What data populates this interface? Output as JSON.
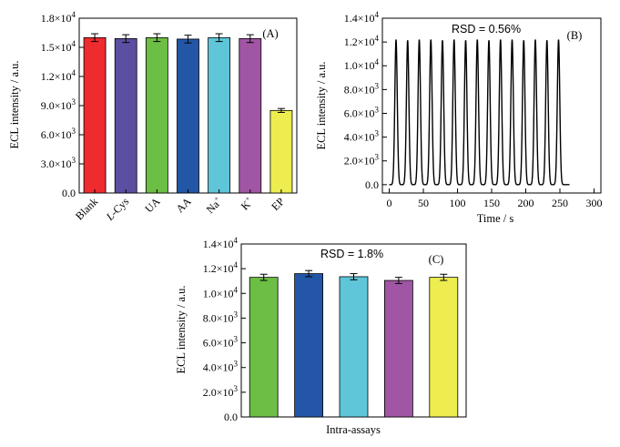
{
  "chart_data": [
    {
      "panel": "(A)",
      "type": "bar",
      "categories": [
        "Blank",
        "L-Cys",
        "UA",
        "AA",
        "Na⁺",
        "K⁺",
        "EP"
      ],
      "values": [
        16000,
        15900,
        16000,
        15850,
        16000,
        15900,
        8500
      ],
      "errors": [
        400,
        400,
        400,
        400,
        400,
        400,
        200
      ],
      "colors": [
        "#ee2b2f",
        "#5b4fa2",
        "#6cbe45",
        "#2356a6",
        "#5ec6d8",
        "#a056a4",
        "#eded4f"
      ],
      "ylabel": "ECL intensity / a.u.",
      "ylim": [
        0,
        18000
      ],
      "yticks": [
        {
          "value": 0,
          "base": "0.0",
          "exp": ""
        },
        {
          "value": 3000,
          "base": "3.0×10",
          "exp": "3"
        },
        {
          "value": 6000,
          "base": "6.0×10",
          "exp": "3"
        },
        {
          "value": 9000,
          "base": "9.0×10",
          "exp": "3"
        },
        {
          "value": 12000,
          "base": "1.2×10",
          "exp": "4"
        },
        {
          "value": 15000,
          "base": "1.5×10",
          "exp": "4"
        },
        {
          "value": 18000,
          "base": "1.8×10",
          "exp": "4"
        }
      ],
      "xtick_labels": [
        {
          "main": "Blank",
          "italic": "",
          "sup": ""
        },
        {
          "main": "-Cys",
          "italic": "L",
          "sup": ""
        },
        {
          "main": "UA",
          "italic": "",
          "sup": ""
        },
        {
          "main": "AA",
          "italic": "",
          "sup": ""
        },
        {
          "main": "Na",
          "italic": "",
          "sup": "+"
        },
        {
          "main": "K",
          "italic": "",
          "sup": "+"
        },
        {
          "main": "EP",
          "italic": "",
          "sup": ""
        }
      ]
    },
    {
      "panel": "(B)",
      "type": "line",
      "annotation": "RSD = 0.56%",
      "xlabel": "Time / s",
      "ylabel": "ECL intensity / a.u.",
      "xlim": [
        -10,
        310
      ],
      "ylim": [
        -700,
        14000
      ],
      "baseline": 0,
      "peak_times": [
        10,
        27,
        44,
        61,
        78,
        95,
        112,
        129,
        146,
        163,
        180,
        197,
        214,
        231,
        248
      ],
      "peak_values": [
        12200,
        12150,
        12200,
        12200,
        12150,
        12200,
        12150,
        12200,
        12150,
        12200,
        12200,
        12150,
        12200,
        12150,
        12200
      ],
      "xticks": [
        0,
        50,
        100,
        150,
        200,
        250,
        300
      ],
      "yticks": [
        {
          "value": 0,
          "base": "0.0",
          "exp": ""
        },
        {
          "value": 2000,
          "base": "2.0×10",
          "exp": "3"
        },
        {
          "value": 4000,
          "base": "4.0×10",
          "exp": "3"
        },
        {
          "value": 6000,
          "base": "6.0×10",
          "exp": "3"
        },
        {
          "value": 8000,
          "base": "8.0×10",
          "exp": "3"
        },
        {
          "value": 10000,
          "base": "1.0×10",
          "exp": "4"
        },
        {
          "value": 12000,
          "base": "1.2×10",
          "exp": "4"
        },
        {
          "value": 14000,
          "base": "1.4×10",
          "exp": "4"
        }
      ]
    },
    {
      "panel": "(C)",
      "type": "bar",
      "annotation": "RSD = 1.8%",
      "xlabel": "Intra-assays",
      "ylabel": "ECL intensity / a.u.",
      "values": [
        11300,
        11600,
        11350,
        11050,
        11300
      ],
      "errors": [
        250,
        250,
        250,
        250,
        250
      ],
      "colors": [
        "#6cbe45",
        "#2356a6",
        "#5ec6d8",
        "#a056a4",
        "#eded4f"
      ],
      "ylim": [
        0,
        14000
      ],
      "yticks": [
        {
          "value": 0,
          "base": "0.0",
          "exp": ""
        },
        {
          "value": 2000,
          "base": "2.0×10",
          "exp": "3"
        },
        {
          "value": 4000,
          "base": "4.0×10",
          "exp": "3"
        },
        {
          "value": 6000,
          "base": "6.0×10",
          "exp": "3"
        },
        {
          "value": 8000,
          "base": "8.0×10",
          "exp": "3"
        },
        {
          "value": 10000,
          "base": "1.0×10",
          "exp": "4"
        },
        {
          "value": 12000,
          "base": "1.2×10",
          "exp": "4"
        },
        {
          "value": 14000,
          "base": "1.4×10",
          "exp": "4"
        }
      ]
    }
  ]
}
